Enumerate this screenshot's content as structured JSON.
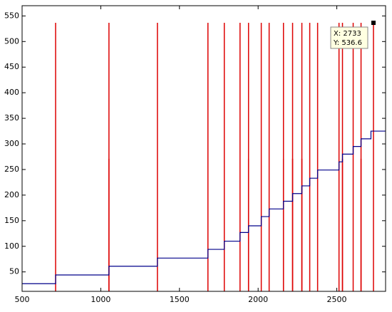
{
  "chart_data": {
    "type": "line",
    "xlim": [
      500,
      2810
    ],
    "ylim": [
      12,
      570
    ],
    "xticks": [
      500,
      1000,
      1500,
      2000,
      2500
    ],
    "yticks": [
      50,
      100,
      150,
      200,
      250,
      300,
      350,
      400,
      450,
      500,
      550
    ],
    "series": [
      {
        "color": "#00008b",
        "x": [
          500,
          713,
          713,
          1052,
          1052,
          1360,
          1360,
          1681,
          1681,
          1785,
          1785,
          1885,
          1885,
          1939,
          1939,
          2020,
          2020,
          2070,
          2070,
          2161,
          2161,
          2219,
          2219,
          2278,
          2278,
          2328,
          2328,
          2378,
          2378,
          2514,
          2514,
          2536,
          2536,
          2604,
          2604,
          2654,
          2654,
          2717,
          2717,
          2810
        ],
        "values": [
          27,
          27,
          44,
          44,
          61,
          61,
          77,
          77,
          94,
          94,
          110,
          110,
          127,
          127,
          140,
          140,
          158,
          158,
          173,
          173,
          188,
          188,
          203,
          203,
          218,
          218,
          233,
          233,
          249,
          249,
          265,
          265,
          280,
          280,
          295,
          295,
          310,
          310,
          325,
          325
        ]
      }
    ],
    "vlines": {
      "color": "#dd0000",
      "x": [
        713,
        1052,
        1360,
        1681,
        1785,
        1885,
        1939,
        2020,
        2070,
        2161,
        2219,
        2278,
        2328,
        2378,
        2514,
        2536,
        2604,
        2654,
        2733,
        1052,
        1939,
        2161,
        2219,
        2278,
        2536,
        2654
      ],
      "values": [
        536.6,
        536.6,
        536.6,
        536.6,
        536.6,
        536.6,
        536.6,
        536.6,
        536.6,
        536.6,
        536.6,
        536.6,
        536.6,
        536.6,
        536.6,
        536.6,
        536.6,
        536.6,
        536.6,
        271,
        271,
        271,
        271,
        271,
        271,
        271
      ]
    },
    "datatip": {
      "x": 2733,
      "y": 536.6,
      "x_label": "X: 2733",
      "y_label": "Y: 536.6"
    }
  }
}
